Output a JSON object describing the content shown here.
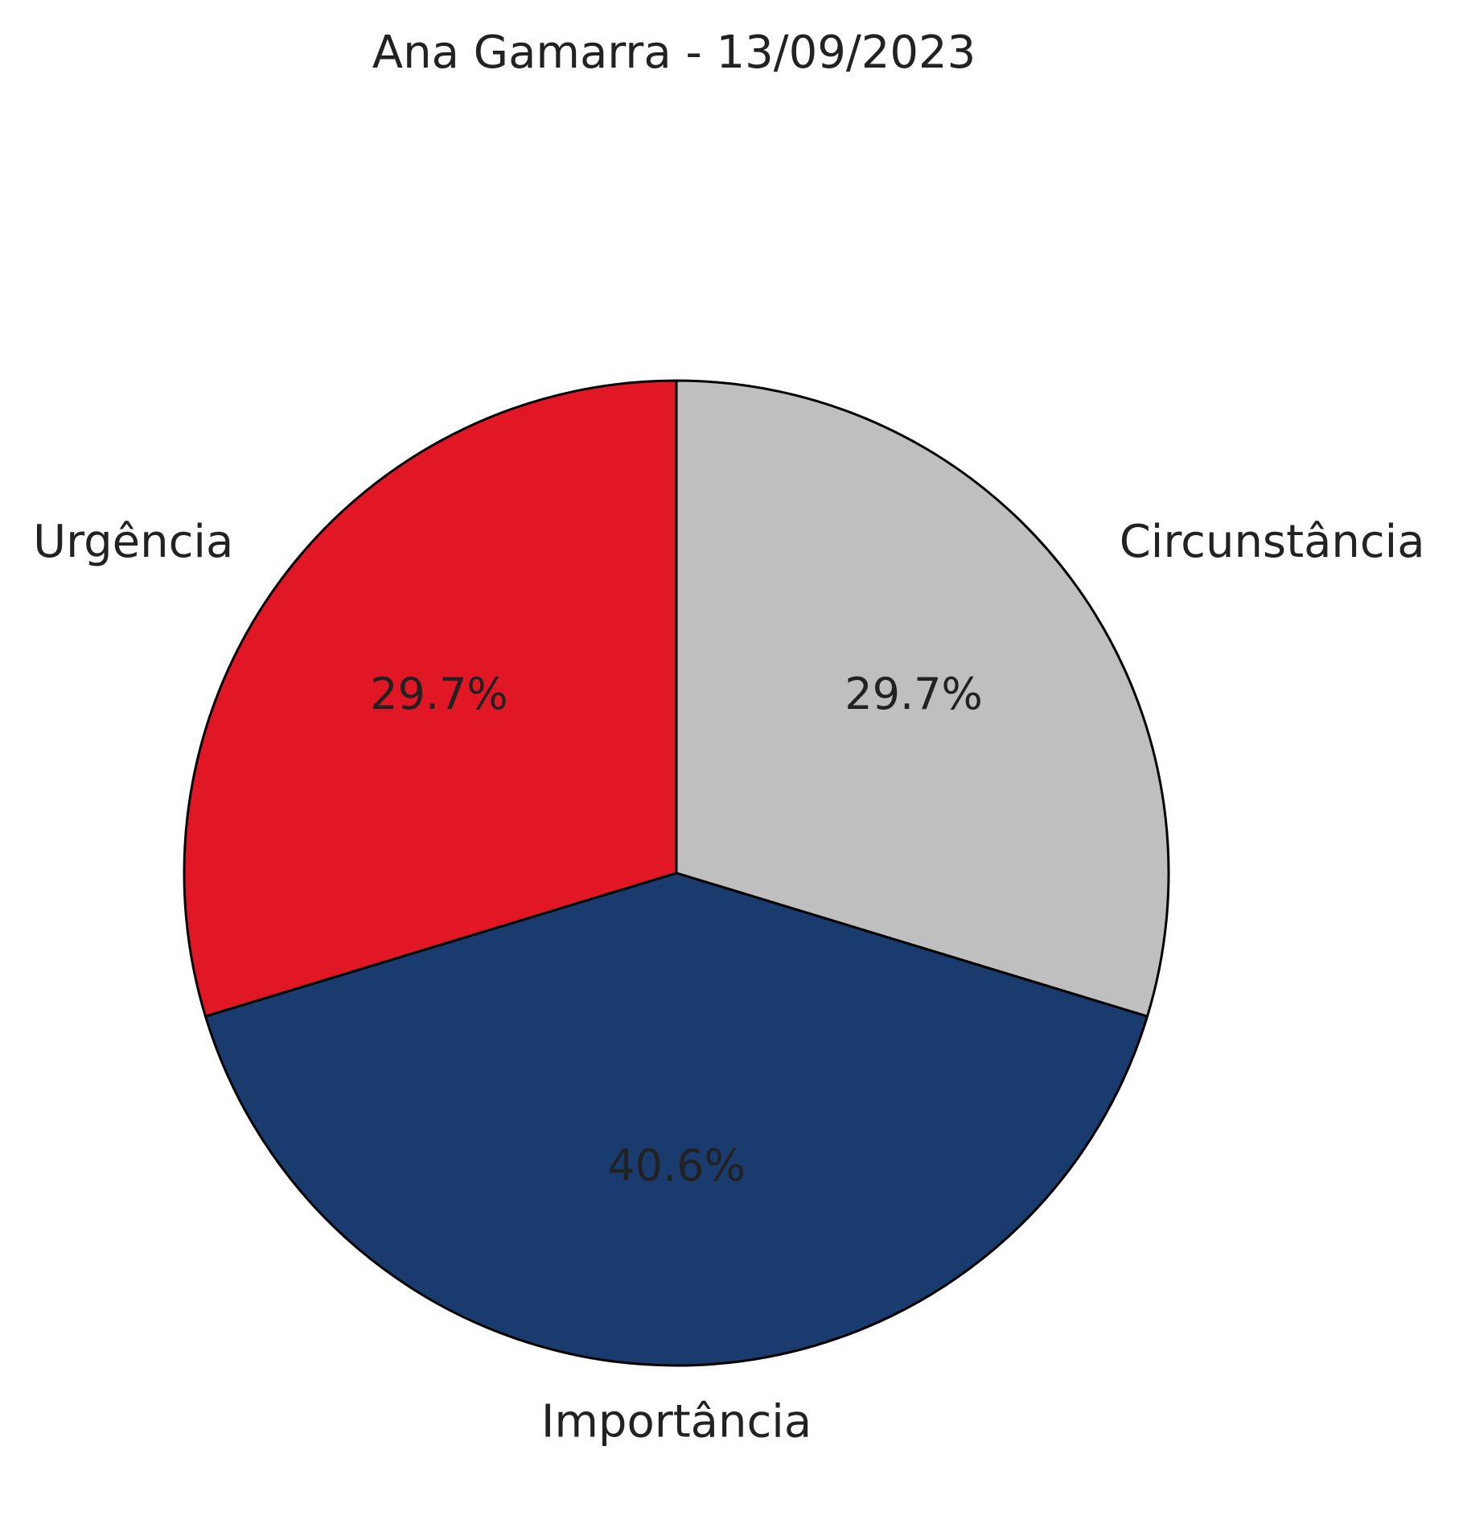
{
  "chart_data": {
    "type": "pie",
    "title": "Ana Gamarra - 13/09/2023",
    "slices": [
      {
        "label": "Circunstância",
        "value": 29.7,
        "display": "29.7%",
        "color": "#bebfbe"
      },
      {
        "label": "Importância",
        "value": 40.6,
        "display": "40.6%",
        "color": "#1a3b6e"
      },
      {
        "label": "Urgência",
        "value": 29.7,
        "display": "29.7%",
        "color": "#e11726"
      }
    ],
    "start": "top",
    "direction": "clockwise",
    "edge_color": "#000000",
    "legend": "none"
  }
}
